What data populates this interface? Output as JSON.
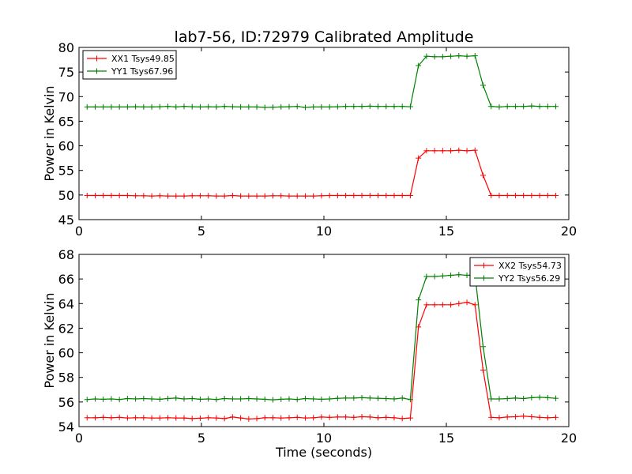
{
  "figure": {
    "title": "lab7-56, ID:72979 Calibrated Amplitude"
  },
  "chart_data": [
    {
      "type": "line",
      "title": "lab7-56, ID:72979 Calibrated Amplitude",
      "xlabel": "",
      "ylabel": "Power in Kelvin",
      "xlim": [
        0,
        20
      ],
      "ylim": [
        45,
        80
      ],
      "xticks": [
        "0",
        "5",
        "10",
        "15",
        "20"
      ],
      "yticks": [
        "45",
        "50",
        "55",
        "60",
        "65",
        "70",
        "75",
        "80"
      ],
      "grid": false,
      "legend_position": "top-left",
      "x": [
        0.33,
        0.66,
        0.99,
        1.32,
        1.65,
        1.98,
        2.31,
        2.64,
        2.97,
        3.3,
        3.63,
        3.96,
        4.29,
        4.62,
        4.95,
        5.28,
        5.61,
        5.94,
        6.27,
        6.6,
        6.93,
        7.26,
        7.59,
        7.92,
        8.25,
        8.58,
        8.91,
        9.24,
        9.57,
        9.9,
        10.23,
        10.56,
        10.89,
        11.22,
        11.55,
        11.88,
        12.21,
        12.54,
        12.87,
        13.2,
        13.53,
        13.86,
        14.19,
        14.52,
        14.85,
        15.18,
        15.51,
        15.84,
        16.17,
        16.5,
        16.83,
        17.16,
        17.49,
        17.82,
        18.15,
        18.48,
        18.81,
        19.14,
        19.47
      ],
      "series": [
        {
          "name": "XX1 Tsys49.85",
          "color": "#ff0000",
          "values": [
            49.9,
            49.9,
            49.9,
            49.9,
            49.9,
            49.9,
            49.85,
            49.85,
            49.8,
            49.85,
            49.8,
            49.8,
            49.8,
            49.85,
            49.85,
            49.85,
            49.8,
            49.8,
            49.9,
            49.8,
            49.8,
            49.8,
            49.8,
            49.85,
            49.85,
            49.8,
            49.8,
            49.8,
            49.8,
            49.85,
            49.9,
            49.9,
            49.9,
            49.9,
            49.9,
            49.9,
            49.9,
            49.9,
            49.9,
            49.9,
            49.9,
            57.5,
            59.0,
            59.0,
            59.0,
            59.0,
            59.1,
            59.0,
            59.1,
            54.0,
            49.9,
            49.9,
            49.9,
            49.9,
            49.9,
            49.9,
            49.9,
            49.9,
            49.9
          ]
        },
        {
          "name": "YY1 Tsys67.96",
          "color": "#008000",
          "values": [
            67.9,
            67.9,
            67.9,
            67.9,
            67.9,
            67.9,
            67.95,
            67.9,
            67.9,
            67.95,
            68.0,
            67.9,
            68.0,
            67.95,
            67.9,
            67.95,
            67.9,
            68.0,
            67.95,
            67.9,
            67.9,
            67.9,
            67.8,
            67.85,
            67.9,
            67.95,
            68.0,
            67.8,
            67.9,
            67.9,
            67.9,
            67.95,
            68.0,
            68.0,
            68.0,
            68.05,
            68.0,
            68.0,
            68.0,
            68.0,
            67.95,
            76.3,
            78.2,
            78.1,
            78.1,
            78.2,
            78.3,
            78.2,
            78.3,
            72.3,
            68.0,
            67.9,
            68.0,
            68.0,
            68.0,
            68.1,
            68.0,
            68.0,
            68.0
          ]
        }
      ]
    },
    {
      "type": "line",
      "title": "",
      "xlabel": "Time (seconds)",
      "ylabel": "Power in Kelvin",
      "xlim": [
        0,
        20
      ],
      "ylim": [
        54,
        68
      ],
      "xticks": [
        "0",
        "5",
        "10",
        "15",
        "20"
      ],
      "yticks": [
        "54",
        "56",
        "58",
        "60",
        "62",
        "64",
        "66",
        "68"
      ],
      "grid": false,
      "legend_position": "top-right",
      "x": [
        0.33,
        0.66,
        0.99,
        1.32,
        1.65,
        1.98,
        2.31,
        2.64,
        2.97,
        3.3,
        3.63,
        3.96,
        4.29,
        4.62,
        4.95,
        5.28,
        5.61,
        5.94,
        6.27,
        6.6,
        6.93,
        7.26,
        7.59,
        7.92,
        8.25,
        8.58,
        8.91,
        9.24,
        9.57,
        9.9,
        10.23,
        10.56,
        10.89,
        11.22,
        11.55,
        11.88,
        12.21,
        12.54,
        12.87,
        13.2,
        13.53,
        13.86,
        14.19,
        14.52,
        14.85,
        15.18,
        15.51,
        15.84,
        16.17,
        16.5,
        16.83,
        17.16,
        17.49,
        17.82,
        18.15,
        18.48,
        18.81,
        19.14,
        19.47
      ],
      "series": [
        {
          "name": "XX2 Tsys54.73",
          "color": "#ff0000",
          "values": [
            54.72,
            54.72,
            54.75,
            54.72,
            54.75,
            54.7,
            54.72,
            54.72,
            54.7,
            54.7,
            54.72,
            54.7,
            54.7,
            54.65,
            54.68,
            54.72,
            54.7,
            54.65,
            54.78,
            54.7,
            54.62,
            54.65,
            54.72,
            54.72,
            54.7,
            54.72,
            54.75,
            54.7,
            54.72,
            54.78,
            54.75,
            54.78,
            54.78,
            54.75,
            54.8,
            54.78,
            54.72,
            54.75,
            54.72,
            54.65,
            54.7,
            62.1,
            63.9,
            63.9,
            63.9,
            63.9,
            64.0,
            64.1,
            63.9,
            58.6,
            54.75,
            54.72,
            54.78,
            54.8,
            54.85,
            54.8,
            54.75,
            54.72,
            54.75
          ]
        },
        {
          "name": "YY2 Tsys56.29",
          "color": "#008000",
          "values": [
            56.2,
            56.25,
            56.22,
            56.25,
            56.2,
            56.28,
            56.25,
            56.28,
            56.25,
            56.22,
            56.28,
            56.32,
            56.25,
            56.28,
            56.22,
            56.25,
            56.2,
            56.28,
            56.25,
            56.25,
            56.28,
            56.25,
            56.22,
            56.18,
            56.22,
            56.25,
            56.2,
            56.28,
            56.25,
            56.22,
            56.25,
            56.3,
            56.32,
            56.32,
            56.35,
            56.32,
            56.3,
            56.28,
            56.25,
            56.32,
            56.2,
            64.3,
            66.2,
            66.2,
            66.25,
            66.3,
            66.35,
            66.3,
            66.35,
            60.5,
            56.25,
            56.25,
            56.28,
            56.32,
            56.28,
            56.35,
            56.38,
            56.35,
            56.3
          ]
        }
      ]
    }
  ]
}
